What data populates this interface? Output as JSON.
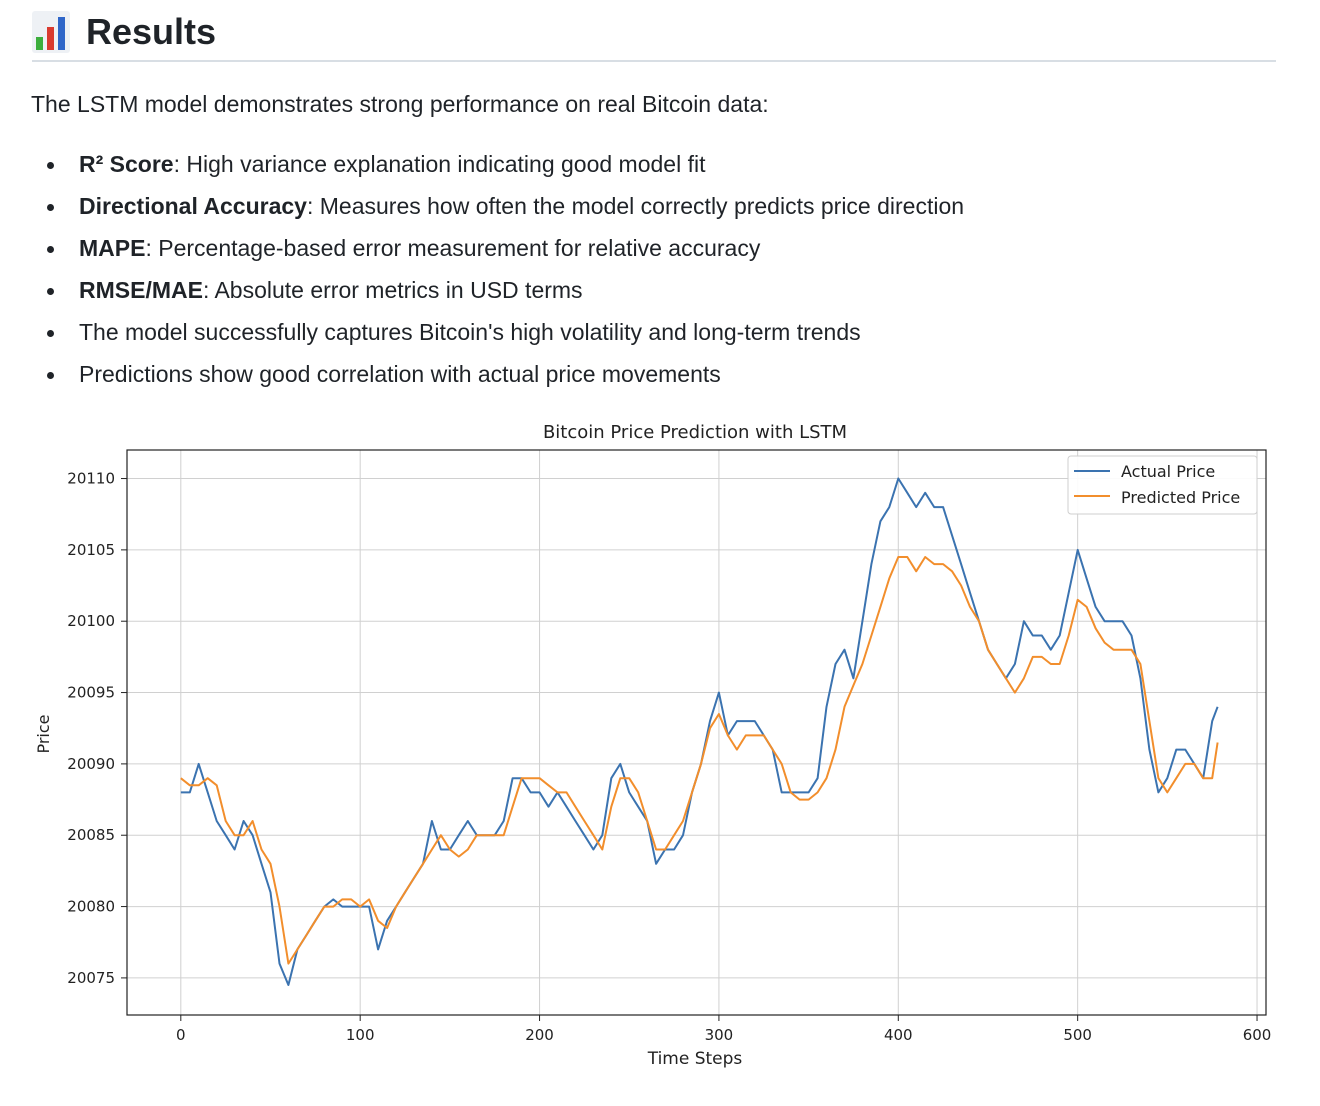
{
  "header": {
    "title": "Results",
    "icon": "bar-chart-icon"
  },
  "intro": "The LSTM model demonstrates strong performance on real Bitcoin data:",
  "bullets": [
    {
      "term": "R² Score",
      "text": ": High variance explanation indicating good model fit"
    },
    {
      "term": "Directional Accuracy",
      "text": ": Measures how often the model correctly predicts price direction"
    },
    {
      "term": "MAPE",
      "text": ": Percentage-based error measurement for relative accuracy"
    },
    {
      "term": "RMSE/MAE",
      "text": ": Absolute error metrics in USD terms"
    },
    {
      "term": "",
      "text": "The model successfully captures Bitcoin's high volatility and long-term trends"
    },
    {
      "term": "",
      "text": "Predictions show good correlation with actual price movements"
    }
  ],
  "chart_data": {
    "type": "line",
    "title": "Bitcoin Price Prediction with LSTM",
    "xlabel": "Time Steps",
    "ylabel": "Price",
    "xlim": [
      -30,
      605
    ],
    "ylim": [
      20072.4,
      20112.0
    ],
    "xticks": [
      0,
      100,
      200,
      300,
      400,
      500,
      600
    ],
    "yticks": [
      20075,
      20080,
      20085,
      20090,
      20095,
      20100,
      20105,
      20110
    ],
    "grid": true,
    "legend": "top-right",
    "series": [
      {
        "name": "Actual Price",
        "color": "#3b73b0",
        "points": [
          [
            0,
            20088
          ],
          [
            5,
            20088
          ],
          [
            10,
            20090
          ],
          [
            15,
            20088
          ],
          [
            20,
            20086
          ],
          [
            25,
            20085
          ],
          [
            30,
            20084
          ],
          [
            35,
            20086
          ],
          [
            40,
            20085
          ],
          [
            45,
            20083
          ],
          [
            50,
            20081
          ],
          [
            55,
            20076
          ],
          [
            60,
            20074.5
          ],
          [
            65,
            20077
          ],
          [
            70,
            20078
          ],
          [
            75,
            20079
          ],
          [
            80,
            20080
          ],
          [
            85,
            20080.5
          ],
          [
            90,
            20080
          ],
          [
            95,
            20080
          ],
          [
            100,
            20080
          ],
          [
            105,
            20080
          ],
          [
            110,
            20077
          ],
          [
            115,
            20079
          ],
          [
            120,
            20080
          ],
          [
            125,
            20081
          ],
          [
            130,
            20082
          ],
          [
            135,
            20083
          ],
          [
            140,
            20086
          ],
          [
            145,
            20084
          ],
          [
            150,
            20084
          ],
          [
            155,
            20085
          ],
          [
            160,
            20086
          ],
          [
            165,
            20085
          ],
          [
            170,
            20085
          ],
          [
            175,
            20085
          ],
          [
            180,
            20086
          ],
          [
            185,
            20089
          ],
          [
            190,
            20089
          ],
          [
            195,
            20088
          ],
          [
            200,
            20088
          ],
          [
            205,
            20087
          ],
          [
            210,
            20088
          ],
          [
            215,
            20087
          ],
          [
            220,
            20086
          ],
          [
            225,
            20085
          ],
          [
            230,
            20084
          ],
          [
            235,
            20085
          ],
          [
            240,
            20089
          ],
          [
            245,
            20090
          ],
          [
            250,
            20088
          ],
          [
            255,
            20087
          ],
          [
            260,
            20086
          ],
          [
            265,
            20083
          ],
          [
            270,
            20084
          ],
          [
            275,
            20084
          ],
          [
            280,
            20085
          ],
          [
            285,
            20088
          ],
          [
            290,
            20090
          ],
          [
            295,
            20093
          ],
          [
            300,
            20095
          ],
          [
            305,
            20092
          ],
          [
            310,
            20093
          ],
          [
            315,
            20093
          ],
          [
            320,
            20093
          ],
          [
            325,
            20092
          ],
          [
            330,
            20091
          ],
          [
            335,
            20088
          ],
          [
            340,
            20088
          ],
          [
            345,
            20088
          ],
          [
            350,
            20088
          ],
          [
            355,
            20089
          ],
          [
            360,
            20094
          ],
          [
            365,
            20097
          ],
          [
            370,
            20098
          ],
          [
            375,
            20096
          ],
          [
            380,
            20100
          ],
          [
            385,
            20104
          ],
          [
            390,
            20107
          ],
          [
            395,
            20108
          ],
          [
            400,
            20110
          ],
          [
            405,
            20109
          ],
          [
            410,
            20108
          ],
          [
            415,
            20109
          ],
          [
            420,
            20108
          ],
          [
            425,
            20108
          ],
          [
            430,
            20106
          ],
          [
            435,
            20104
          ],
          [
            440,
            20102
          ],
          [
            445,
            20100
          ],
          [
            450,
            20098
          ],
          [
            455,
            20097
          ],
          [
            460,
            20096
          ],
          [
            465,
            20097
          ],
          [
            470,
            20100
          ],
          [
            475,
            20099
          ],
          [
            480,
            20099
          ],
          [
            485,
            20098
          ],
          [
            490,
            20099
          ],
          [
            495,
            20102
          ],
          [
            500,
            20105
          ],
          [
            505,
            20103
          ],
          [
            510,
            20101
          ],
          [
            515,
            20100
          ],
          [
            520,
            20100
          ],
          [
            525,
            20100
          ],
          [
            530,
            20099
          ],
          [
            535,
            20096
          ],
          [
            540,
            20091
          ],
          [
            545,
            20088
          ],
          [
            550,
            20089
          ],
          [
            555,
            20091
          ],
          [
            560,
            20091
          ],
          [
            565,
            20090
          ],
          [
            570,
            20089
          ],
          [
            575,
            20093
          ],
          [
            578,
            20094
          ]
        ]
      },
      {
        "name": "Predicted Price",
        "color": "#f28e2c",
        "points": [
          [
            0,
            20089
          ],
          [
            5,
            20088.5
          ],
          [
            10,
            20088.5
          ],
          [
            15,
            20089
          ],
          [
            20,
            20088.5
          ],
          [
            25,
            20086
          ],
          [
            30,
            20085
          ],
          [
            35,
            20085
          ],
          [
            40,
            20086
          ],
          [
            45,
            20084
          ],
          [
            50,
            20083
          ],
          [
            55,
            20080
          ],
          [
            60,
            20076
          ],
          [
            65,
            20077
          ],
          [
            70,
            20078
          ],
          [
            75,
            20079
          ],
          [
            80,
            20080
          ],
          [
            85,
            20080
          ],
          [
            90,
            20080.5
          ],
          [
            95,
            20080.5
          ],
          [
            100,
            20080
          ],
          [
            105,
            20080.5
          ],
          [
            110,
            20079
          ],
          [
            115,
            20078.5
          ],
          [
            120,
            20080
          ],
          [
            125,
            20081
          ],
          [
            130,
            20082
          ],
          [
            135,
            20083
          ],
          [
            140,
            20084
          ],
          [
            145,
            20085
          ],
          [
            150,
            20084
          ],
          [
            155,
            20083.5
          ],
          [
            160,
            20084
          ],
          [
            165,
            20085
          ],
          [
            170,
            20085
          ],
          [
            175,
            20085
          ],
          [
            180,
            20085
          ],
          [
            185,
            20087
          ],
          [
            190,
            20089
          ],
          [
            195,
            20089
          ],
          [
            200,
            20089
          ],
          [
            205,
            20088.5
          ],
          [
            210,
            20088
          ],
          [
            215,
            20088
          ],
          [
            220,
            20087
          ],
          [
            225,
            20086
          ],
          [
            230,
            20085
          ],
          [
            235,
            20084
          ],
          [
            240,
            20087
          ],
          [
            245,
            20089
          ],
          [
            250,
            20089
          ],
          [
            255,
            20088
          ],
          [
            260,
            20086
          ],
          [
            265,
            20084
          ],
          [
            270,
            20084
          ],
          [
            275,
            20085
          ],
          [
            280,
            20086
          ],
          [
            285,
            20088
          ],
          [
            290,
            20090
          ],
          [
            295,
            20092.5
          ],
          [
            300,
            20093.5
          ],
          [
            305,
            20092
          ],
          [
            310,
            20091
          ],
          [
            315,
            20092
          ],
          [
            320,
            20092
          ],
          [
            325,
            20092
          ],
          [
            330,
            20091
          ],
          [
            335,
            20090
          ],
          [
            340,
            20088
          ],
          [
            345,
            20087.5
          ],
          [
            350,
            20087.5
          ],
          [
            355,
            20088
          ],
          [
            360,
            20089
          ],
          [
            365,
            20091
          ],
          [
            370,
            20094
          ],
          [
            375,
            20095.5
          ],
          [
            380,
            20097
          ],
          [
            385,
            20099
          ],
          [
            390,
            20101
          ],
          [
            395,
            20103
          ],
          [
            400,
            20104.5
          ],
          [
            405,
            20104.5
          ],
          [
            410,
            20103.5
          ],
          [
            415,
            20104.5
          ],
          [
            420,
            20104
          ],
          [
            425,
            20104
          ],
          [
            430,
            20103.5
          ],
          [
            435,
            20102.5
          ],
          [
            440,
            20101
          ],
          [
            445,
            20100
          ],
          [
            450,
            20098
          ],
          [
            455,
            20097
          ],
          [
            460,
            20096
          ],
          [
            465,
            20095
          ],
          [
            470,
            20096
          ],
          [
            475,
            20097.5
          ],
          [
            480,
            20097.5
          ],
          [
            485,
            20097
          ],
          [
            490,
            20097
          ],
          [
            495,
            20099
          ],
          [
            500,
            20101.5
          ],
          [
            505,
            20101
          ],
          [
            510,
            20099.5
          ],
          [
            515,
            20098.5
          ],
          [
            520,
            20098
          ],
          [
            525,
            20098
          ],
          [
            530,
            20098
          ],
          [
            535,
            20097
          ],
          [
            540,
            20093
          ],
          [
            545,
            20089
          ],
          [
            550,
            20088
          ],
          [
            555,
            20089
          ],
          [
            560,
            20090
          ],
          [
            565,
            20090
          ],
          [
            570,
            20089
          ],
          [
            575,
            20089
          ],
          [
            578,
            20091.5
          ]
        ]
      }
    ]
  }
}
